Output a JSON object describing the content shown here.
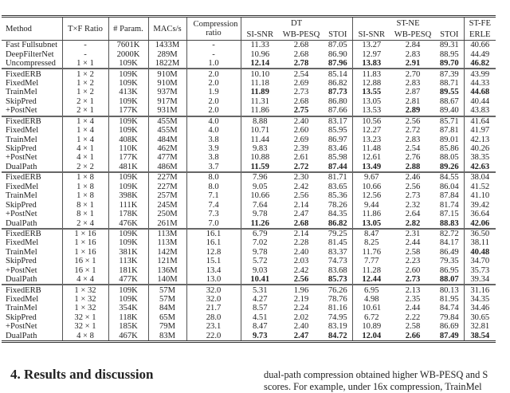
{
  "table": {
    "headers": {
      "method": "Method",
      "txf": "T×F Ratio",
      "params": "# Param.",
      "macs": "MACs/s",
      "compression": "Compression ratio",
      "dt": "DT",
      "stne": "ST-NE",
      "stfe": "ST-FE",
      "si_snr": "SI-SNR",
      "wb_pesq": "WB-PESQ",
      "stoi": "STOI",
      "erle": "ERLE"
    },
    "groups": [
      [
        {
          "cells": [
            "Fast Fullsubnet",
            "-",
            "7601K",
            "1433M",
            "-",
            "11.33",
            "2.68",
            "87.05",
            "13.27",
            "2.84",
            "89.31",
            "40.66"
          ],
          "bold": []
        },
        {
          "cells": [
            "DeepFilterNet",
            "-",
            "2000K",
            "289M",
            "-",
            "10.96",
            "2.68",
            "86.90",
            "12.97",
            "2.83",
            "88.95",
            "44.49"
          ],
          "bold": []
        },
        {
          "cells": [
            "Uncompressed",
            "1 × 1",
            "109K",
            "1822M",
            "1.0",
            "12.14",
            "2.78",
            "87.96",
            "13.83",
            "2.91",
            "89.70",
            "46.82"
          ],
          "bold": [
            5,
            6,
            7,
            8,
            9,
            10,
            11
          ]
        }
      ],
      [
        {
          "cells": [
            "FixedERB",
            "1 × 2",
            "109K",
            "910M",
            "2.0",
            "10.10",
            "2.54",
            "85.14",
            "11.83",
            "2.70",
            "87.39",
            "43.99"
          ],
          "bold": []
        },
        {
          "cells": [
            "FixedMel",
            "1 × 2",
            "109K",
            "910M",
            "2.0",
            "11.18",
            "2.69",
            "86.82",
            "12.88",
            "2.83",
            "88.71",
            "44.33"
          ],
          "bold": []
        },
        {
          "cells": [
            "TrainMel",
            "1 × 2",
            "413K",
            "937M",
            "1.9",
            "11.89",
            "2.73",
            "87.73",
            "13.55",
            "2.87",
            "89.55",
            "44.68"
          ],
          "bold": [
            5,
            7,
            8,
            10,
            11
          ]
        },
        {
          "cells": [
            "SkipPred",
            "2 × 1",
            "109K",
            "917M",
            "2.0",
            "11.31",
            "2.68",
            "86.80",
            "13.05",
            "2.81",
            "88.67",
            "40.44"
          ],
          "bold": []
        },
        {
          "cells": [
            "+PostNet",
            "2 × 1",
            "177K",
            "931M",
            "2.0",
            "11.86",
            "2.75",
            "87.66",
            "13.53",
            "2.89",
            "89.40",
            "43.83"
          ],
          "bold": [
            6,
            9
          ]
        }
      ],
      [
        {
          "cells": [
            "FixedERB",
            "1 × 4",
            "109K",
            "455M",
            "4.0",
            "8.88",
            "2.40",
            "83.17",
            "10.56",
            "2.56",
            "85.71",
            "41.64"
          ],
          "bold": []
        },
        {
          "cells": [
            "FixedMel",
            "1 × 4",
            "109K",
            "455M",
            "4.0",
            "10.71",
            "2.60",
            "85.95",
            "12.27",
            "2.72",
            "87.81",
            "41.97"
          ],
          "bold": []
        },
        {
          "cells": [
            "TrainMel",
            "1 × 4",
            "408K",
            "484M",
            "3.8",
            "11.44",
            "2.69",
            "86.97",
            "13.23",
            "2.83",
            "89.01",
            "42.13"
          ],
          "bold": []
        },
        {
          "cells": [
            "SkipPred",
            "4 × 1",
            "110K",
            "462M",
            "3.9",
            "9.83",
            "2.39",
            "83.46",
            "11.48",
            "2.54",
            "85.86",
            "40.26"
          ],
          "bold": []
        },
        {
          "cells": [
            "+PostNet",
            "4 × 1",
            "177K",
            "477M",
            "3.8",
            "10.88",
            "2.61",
            "85.98",
            "12.61",
            "2.76",
            "88.05",
            "38.35"
          ],
          "bold": []
        },
        {
          "cells": [
            "DualPath",
            "2 × 2",
            "481K",
            "486M",
            "3.7",
            "11.59",
            "2.72",
            "87.44",
            "13.49",
            "2.88",
            "89.26",
            "42.63"
          ],
          "bold": [
            5,
            6,
            7,
            8,
            9,
            10,
            11
          ]
        }
      ],
      [
        {
          "cells": [
            "FixedERB",
            "1 × 8",
            "109K",
            "227M",
            "8.0",
            "7.96",
            "2.30",
            "81.71",
            "9.67",
            "2.46",
            "84.55",
            "38.04"
          ],
          "bold": []
        },
        {
          "cells": [
            "FixedMel",
            "1 × 8",
            "109K",
            "227M",
            "8.0",
            "9.05",
            "2.42",
            "83.65",
            "10.66",
            "2.56",
            "86.04",
            "41.52"
          ],
          "bold": []
        },
        {
          "cells": [
            "TrainMel",
            "1 × 8",
            "398K",
            "257M",
            "7.1",
            "10.66",
            "2.56",
            "85.36",
            "12.56",
            "2.73",
            "87.84",
            "41.10"
          ],
          "bold": []
        },
        {
          "cells": [
            "SkipPred",
            "8 × 1",
            "111K",
            "245M",
            "7.4",
            "7.64",
            "2.14",
            "78.26",
            "9.44",
            "2.32",
            "81.74",
            "39.42"
          ],
          "bold": []
        },
        {
          "cells": [
            "+PostNet",
            "8 × 1",
            "178K",
            "250M",
            "7.3",
            "9.78",
            "2.47",
            "84.35",
            "11.86",
            "2.64",
            "87.15",
            "36.64"
          ],
          "bold": []
        },
        {
          "cells": [
            "DualPath",
            "2 × 4",
            "476K",
            "261M",
            "7.0",
            "11.26",
            "2.68",
            "86.82",
            "13.05",
            "2.82",
            "88.83",
            "42.06"
          ],
          "bold": [
            5,
            6,
            7,
            8,
            9,
            10,
            11
          ]
        }
      ],
      [
        {
          "cells": [
            "FixedERB",
            "1 × 16",
            "109K",
            "113M",
            "16.1",
            "6.79",
            "2.14",
            "79.25",
            "8.47",
            "2.31",
            "82.72",
            "36.50"
          ],
          "bold": []
        },
        {
          "cells": [
            "FixedMel",
            "1 × 16",
            "109K",
            "113M",
            "16.1",
            "7.02",
            "2.28",
            "81.45",
            "8.25",
            "2.44",
            "84.17",
            "38.11"
          ],
          "bold": []
        },
        {
          "cells": [
            "TrainMel",
            "1 × 16",
            "381K",
            "142M",
            "12.8",
            "9.78",
            "2.40",
            "83.37",
            "11.76",
            "2.58",
            "86.49",
            "40.48"
          ],
          "bold": [
            11
          ]
        },
        {
          "cells": [
            "SkipPred",
            "16 × 1",
            "113K",
            "121M",
            "15.1",
            "5.72",
            "2.03",
            "74.73",
            "7.77",
            "2.23",
            "79.35",
            "34.70"
          ],
          "bold": []
        },
        {
          "cells": [
            "+PostNet",
            "16 × 1",
            "181K",
            "136M",
            "13.4",
            "9.03",
            "2.42",
            "83.68",
            "11.28",
            "2.60",
            "86.95",
            "35.73"
          ],
          "bold": []
        },
        {
          "cells": [
            "DualPath",
            "4 × 4",
            "477K",
            "140M",
            "13.0",
            "10.41",
            "2.56",
            "85.73",
            "12.44",
            "2.73",
            "88.07",
            "39.34"
          ],
          "bold": [
            5,
            6,
            7,
            8,
            9,
            10
          ]
        }
      ],
      [
        {
          "cells": [
            "FixedERB",
            "1 × 32",
            "109K",
            "57M",
            "32.0",
            "5.31",
            "1.96",
            "76.26",
            "6.95",
            "2.13",
            "80.13",
            "31.16"
          ],
          "bold": []
        },
        {
          "cells": [
            "FixedMel",
            "1 × 32",
            "109K",
            "57M",
            "32.0",
            "4.27",
            "2.19",
            "78.76",
            "4.98",
            "2.35",
            "81.95",
            "34.35"
          ],
          "bold": []
        },
        {
          "cells": [
            "TrainMel",
            "1 × 32",
            "354K",
            "84M",
            "21.7",
            "8.57",
            "2.24",
            "81.16",
            "10.61",
            "2.44",
            "84.74",
            "34.46"
          ],
          "bold": []
        },
        {
          "cells": [
            "SkipPred",
            "32 × 1",
            "118K",
            "65M",
            "28.0",
            "4.51",
            "2.02",
            "74.95",
            "6.72",
            "2.22",
            "79.84",
            "30.65"
          ],
          "bold": []
        },
        {
          "cells": [
            "+PostNet",
            "32 × 1",
            "185K",
            "79M",
            "23.1",
            "8.47",
            "2.40",
            "83.19",
            "10.89",
            "2.58",
            "86.69",
            "32.81"
          ],
          "bold": []
        },
        {
          "cells": [
            "DualPath",
            "4 × 8",
            "467K",
            "83M",
            "22.0",
            "9.73",
            "2.47",
            "84.72",
            "12.04",
            "2.66",
            "87.49",
            "38.54"
          ],
          "bold": [
            5,
            6,
            7,
            8,
            9,
            10,
            11
          ]
        }
      ]
    ]
  },
  "section": {
    "heading": "4.  Results and discussion"
  },
  "body_text": {
    "line1": "dual-path compression obtained higher WB-PESQ and S",
    "line2": "scores. For example, under 16x compression, TrainMel"
  }
}
